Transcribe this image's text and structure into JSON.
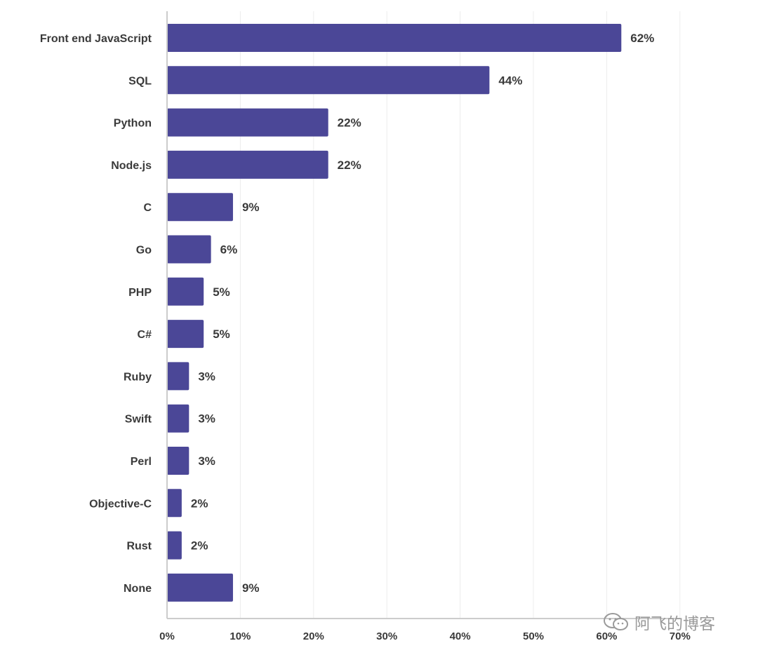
{
  "chart_data": {
    "type": "bar",
    "orientation": "horizontal",
    "title": "",
    "xlabel": "",
    "ylabel": "",
    "categories": [
      "Front end JavaScript",
      "SQL",
      "Python",
      "Node.js",
      "C",
      "Go",
      "PHP",
      "C#",
      "Ruby",
      "Swift",
      "Perl",
      "Objective-C",
      "Rust",
      "None"
    ],
    "values": [
      62,
      44,
      22,
      22,
      9,
      6,
      5,
      5,
      3,
      3,
      3,
      2,
      2,
      9
    ],
    "value_labels": [
      "62%",
      "44%",
      "22%",
      "22%",
      "9%",
      "6%",
      "5%",
      "5%",
      "3%",
      "3%",
      "3%",
      "2%",
      "2%",
      "9%"
    ],
    "xlim": [
      0,
      70
    ],
    "x_ticks": [
      0,
      10,
      20,
      30,
      40,
      50,
      60,
      70
    ],
    "x_tick_labels": [
      "0%",
      "10%",
      "20%",
      "30%",
      "40%",
      "50%",
      "60%",
      "70%"
    ],
    "grid": true,
    "legend": "none",
    "bar_color": "#4b4797"
  },
  "watermark": {
    "text": "阿飞的博客",
    "icon": "wechat-icon"
  }
}
